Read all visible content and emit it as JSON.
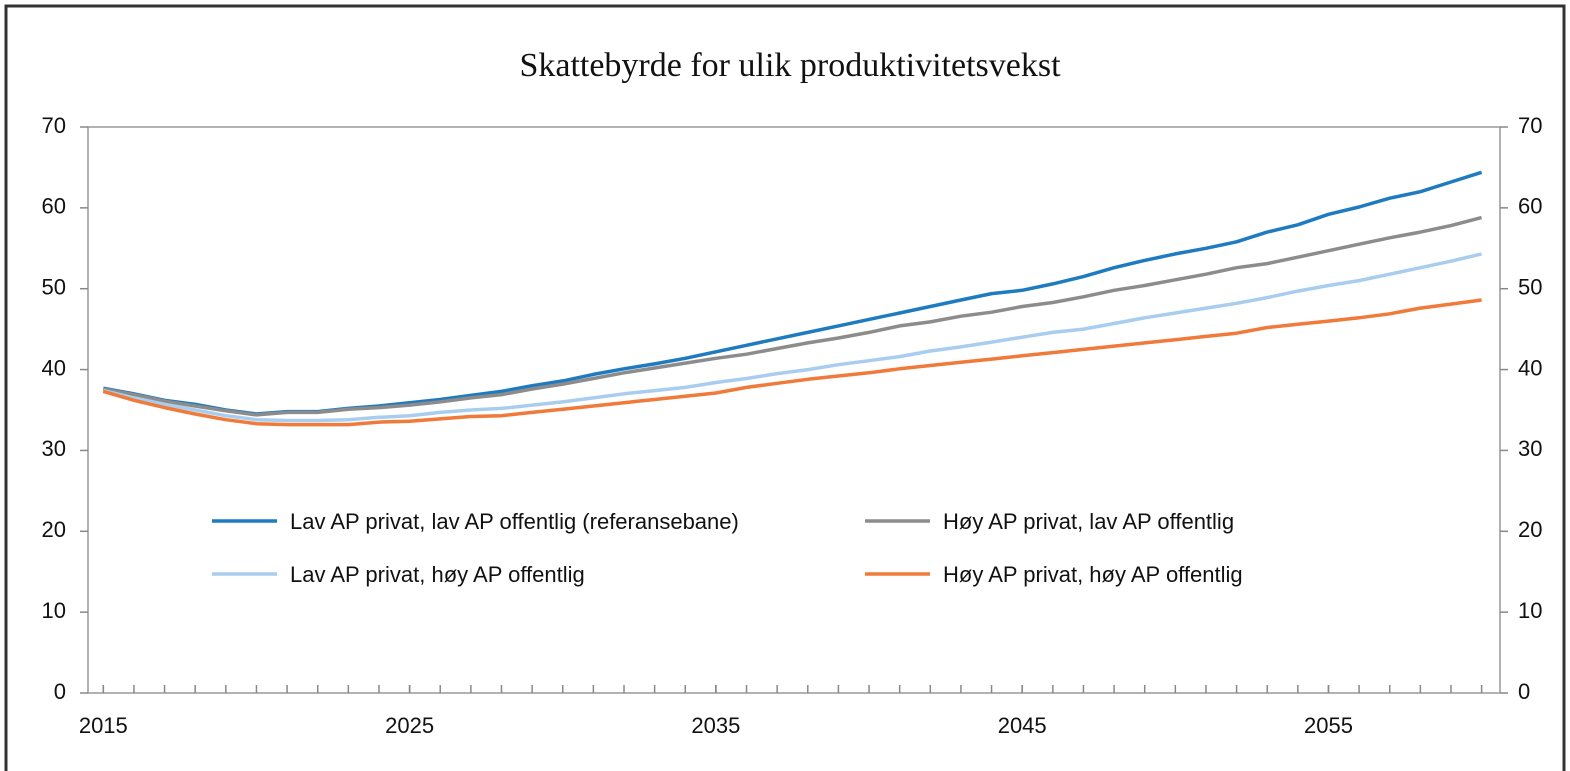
{
  "chart_data": {
    "type": "line",
    "title": "Skattebyrde for ulik produktivitetsvekst",
    "x": [
      2015,
      2016,
      2017,
      2018,
      2019,
      2020,
      2021,
      2022,
      2023,
      2024,
      2025,
      2026,
      2027,
      2028,
      2029,
      2030,
      2031,
      2032,
      2033,
      2034,
      2035,
      2036,
      2037,
      2038,
      2039,
      2040,
      2041,
      2042,
      2043,
      2044,
      2045,
      2046,
      2047,
      2048,
      2049,
      2050,
      2051,
      2052,
      2053,
      2054,
      2055,
      2056,
      2057,
      2058,
      2059,
      2060
    ],
    "series": [
      {
        "name": "Lav AP privat, lav AP offentlig (referansebane)",
        "color": "#1f7bc0",
        "values": [
          37.7,
          37,
          36.2,
          35.7,
          35,
          34.5,
          34.8,
          34.8,
          35.2,
          35.5,
          35.9,
          36.3,
          36.8,
          37.3,
          38,
          38.6,
          39.4,
          40.1,
          40.7,
          41.4,
          42.2,
          43,
          43.8,
          44.6,
          45.4,
          46.2,
          47,
          47.8,
          48.6,
          49.4,
          49.8,
          50.6,
          51.5,
          52.6,
          53.5,
          54.3,
          55,
          55.8,
          57,
          57.9,
          59.2,
          60.1,
          61.2,
          62,
          63.2,
          64.4
        ]
      },
      {
        "name": "Høy AP privat, lav AP offentlig",
        "color": "#8c8c8c",
        "values": [
          37.6,
          36.9,
          36.1,
          35.5,
          34.9,
          34.4,
          34.7,
          34.7,
          35.1,
          35.3,
          35.6,
          36,
          36.5,
          36.9,
          37.6,
          38.2,
          38.9,
          39.6,
          40.2,
          40.8,
          41.4,
          41.9,
          42.6,
          43.3,
          43.9,
          44.6,
          45.4,
          45.9,
          46.6,
          47.1,
          47.8,
          48.3,
          49,
          49.8,
          50.4,
          51.1,
          51.8,
          52.6,
          53.1,
          53.9,
          54.7,
          55.5,
          56.3,
          57,
          57.8,
          58.8
        ]
      },
      {
        "name": "Lav AP privat, høy AP offentlig",
        "color": "#a9cdee",
        "values": [
          37.4,
          36.5,
          35.7,
          35,
          34.3,
          33.8,
          33.7,
          33.7,
          33.8,
          34.1,
          34.3,
          34.7,
          35,
          35.2,
          35.6,
          36,
          36.5,
          37,
          37.4,
          37.8,
          38.4,
          38.9,
          39.5,
          40,
          40.6,
          41.1,
          41.6,
          42.3,
          42.8,
          43.4,
          44,
          44.6,
          45,
          45.7,
          46.4,
          47,
          47.6,
          48.2,
          48.9,
          49.7,
          50.4,
          51,
          51.8,
          52.6,
          53.4,
          54.3
        ]
      },
      {
        "name": "Høy AP privat, høy AP offentlig",
        "color": "#f07a3a",
        "values": [
          37.3,
          36.2,
          35.3,
          34.5,
          33.8,
          33.3,
          33.2,
          33.2,
          33.2,
          33.5,
          33.6,
          33.9,
          34.2,
          34.3,
          34.7,
          35.1,
          35.5,
          35.9,
          36.3,
          36.7,
          37.1,
          37.8,
          38.3,
          38.8,
          39.2,
          39.6,
          40.1,
          40.5,
          40.9,
          41.3,
          41.7,
          42.1,
          42.5,
          42.9,
          43.3,
          43.7,
          44.1,
          44.5,
          45.2,
          45.6,
          46,
          46.4,
          46.9,
          47.6,
          48.1,
          48.6
        ]
      }
    ],
    "xlim": [
      2014.5,
      2060.6
    ],
    "xticks": [
      2015,
      2025,
      2035,
      2045,
      2055
    ],
    "xminorticks": [
      2015,
      2016,
      2017,
      2018,
      2019,
      2020,
      2021,
      2022,
      2023,
      2024,
      2025,
      2026,
      2027,
      2028,
      2029,
      2030,
      2031,
      2032,
      2033,
      2034,
      2035,
      2036,
      2037,
      2038,
      2039,
      2040,
      2041,
      2042,
      2043,
      2044,
      2045,
      2046,
      2047,
      2048,
      2049,
      2050,
      2051,
      2052,
      2053,
      2054,
      2055,
      2056,
      2057,
      2058,
      2059,
      2060
    ],
    "ylim": [
      0,
      70
    ],
    "yticks": [
      0,
      10,
      20,
      30,
      40,
      50,
      60,
      70
    ],
    "y2lim": [
      0,
      70
    ],
    "y2ticks": [
      0,
      10,
      20,
      30,
      40,
      50,
      60,
      70
    ],
    "grid": false,
    "legend": "center"
  }
}
